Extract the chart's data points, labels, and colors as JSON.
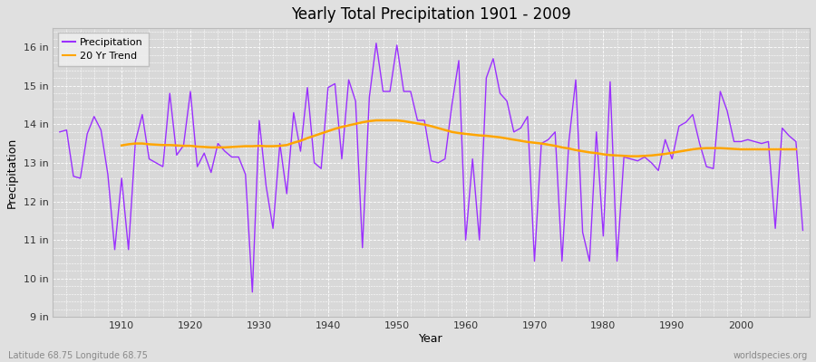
{
  "title": "Yearly Total Precipitation 1901 - 2009",
  "xlabel": "Year",
  "ylabel": "Precipitation",
  "bottom_left_label": "Latitude 68.75 Longitude 68.75",
  "bottom_right_label": "worldspecies.org",
  "precip_color": "#9B30FF",
  "trend_color": "#FFA500",
  "bg_color": "#E0E0E0",
  "plot_bg_color": "#D8D8D8",
  "grid_color": "#FFFFFF",
  "years": [
    1901,
    1902,
    1903,
    1904,
    1905,
    1906,
    1907,
    1908,
    1909,
    1910,
    1911,
    1912,
    1913,
    1914,
    1915,
    1916,
    1917,
    1918,
    1919,
    1920,
    1921,
    1922,
    1923,
    1924,
    1925,
    1926,
    1927,
    1928,
    1929,
    1930,
    1931,
    1932,
    1933,
    1934,
    1935,
    1936,
    1937,
    1938,
    1939,
    1940,
    1941,
    1942,
    1943,
    1944,
    1945,
    1946,
    1947,
    1948,
    1949,
    1950,
    1951,
    1952,
    1953,
    1954,
    1955,
    1956,
    1957,
    1958,
    1959,
    1960,
    1961,
    1962,
    1963,
    1964,
    1965,
    1966,
    1967,
    1968,
    1969,
    1970,
    1971,
    1972,
    1973,
    1974,
    1975,
    1976,
    1977,
    1978,
    1979,
    1980,
    1981,
    1982,
    1983,
    1984,
    1985,
    1986,
    1987,
    1988,
    1989,
    1990,
    1991,
    1992,
    1993,
    1994,
    1995,
    1996,
    1997,
    1998,
    1999,
    2000,
    2001,
    2002,
    2003,
    2004,
    2005,
    2006,
    2007,
    2008,
    2009
  ],
  "precipitation": [
    13.8,
    13.85,
    12.65,
    12.6,
    13.75,
    14.2,
    13.85,
    12.7,
    10.75,
    12.6,
    10.75,
    13.55,
    14.25,
    13.1,
    13.0,
    12.9,
    14.8,
    13.2,
    13.45,
    14.85,
    12.9,
    13.25,
    12.75,
    13.5,
    13.3,
    13.15,
    13.15,
    12.7,
    9.65,
    14.1,
    12.4,
    11.3,
    13.5,
    12.2,
    14.3,
    13.3,
    14.95,
    13.0,
    12.85,
    14.95,
    15.05,
    13.1,
    15.15,
    14.6,
    10.8,
    14.7,
    16.1,
    14.85,
    14.85,
    16.05,
    14.85,
    14.85,
    14.1,
    14.1,
    13.05,
    13.0,
    13.1,
    14.5,
    15.65,
    11.0,
    13.1,
    11.0,
    15.2,
    15.7,
    14.8,
    14.6,
    13.8,
    13.9,
    14.2,
    10.45,
    13.5,
    13.6,
    13.8,
    10.45,
    13.55,
    15.15,
    11.2,
    10.45,
    13.8,
    11.1,
    15.1,
    10.45,
    13.15,
    13.1,
    13.05,
    13.15,
    13.0,
    12.8,
    13.6,
    13.1,
    13.95,
    14.05,
    14.25,
    13.5,
    12.9,
    12.85,
    14.85,
    14.35,
    13.55,
    13.55,
    13.6,
    13.55,
    13.5,
    13.55,
    11.3,
    13.9,
    13.7,
    13.55,
    11.25
  ],
  "trend": [
    null,
    null,
    null,
    null,
    null,
    null,
    null,
    null,
    null,
    13.45,
    13.48,
    13.5,
    13.5,
    13.48,
    13.47,
    13.46,
    13.46,
    13.45,
    13.44,
    13.44,
    13.42,
    13.41,
    13.4,
    13.4,
    13.4,
    13.41,
    13.42,
    13.43,
    13.43,
    13.44,
    13.43,
    13.43,
    13.44,
    13.46,
    13.52,
    13.57,
    13.64,
    13.7,
    13.76,
    13.82,
    13.88,
    13.93,
    13.97,
    14.01,
    14.05,
    14.08,
    14.1,
    14.1,
    14.1,
    14.1,
    14.08,
    14.05,
    14.02,
    13.99,
    13.95,
    13.9,
    13.85,
    13.8,
    13.77,
    13.75,
    13.73,
    13.71,
    13.7,
    13.68,
    13.66,
    13.63,
    13.6,
    13.57,
    13.54,
    13.52,
    13.5,
    13.47,
    13.44,
    13.4,
    13.37,
    13.33,
    13.3,
    13.27,
    13.25,
    13.22,
    13.2,
    13.19,
    13.18,
    13.17,
    13.17,
    13.18,
    13.19,
    13.21,
    13.23,
    13.26,
    13.29,
    13.32,
    13.35,
    13.37,
    13.38,
    13.38,
    13.38,
    13.37,
    13.36,
    13.35,
    13.35,
    13.35,
    13.35,
    13.35,
    13.35,
    13.35,
    13.35,
    13.35
  ],
  "ylim": [
    9.0,
    16.5
  ],
  "yticks": [
    9,
    10,
    11,
    12,
    13,
    14,
    15,
    16
  ],
  "ytick_labels": [
    "9 in",
    "10 in",
    "11 in",
    "12 in",
    "13 in",
    "14 in",
    "15 in",
    "16 in"
  ],
  "xticks": [
    1910,
    1920,
    1930,
    1940,
    1950,
    1960,
    1970,
    1980,
    1990,
    2000
  ],
  "xlim": [
    1900,
    2010
  ]
}
